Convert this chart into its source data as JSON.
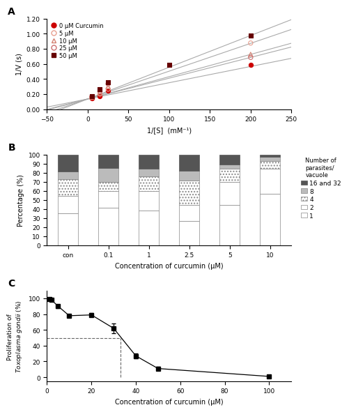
{
  "panel_A": {
    "xlabel": "1/[S]  (mM⁻¹)",
    "ylabel": "1/V (s)",
    "xlim": [
      -50,
      250
    ],
    "ylim": [
      0.0,
      1.2
    ],
    "yticks": [
      0.0,
      0.2,
      0.4,
      0.6,
      0.8,
      1.0,
      1.2
    ],
    "xticks": [
      -50,
      0,
      50,
      100,
      150,
      200,
      250
    ],
    "series": [
      {
        "label": "0 μM Curcumin",
        "color": "#cc0000",
        "marker": "o",
        "filled": true,
        "points": [
          [
            5,
            0.145
          ],
          [
            15,
            0.175
          ],
          [
            25,
            0.245
          ],
          [
            200,
            0.585
          ]
        ],
        "slope": 0.00215,
        "intercept": 0.135
      },
      {
        "label": "5 μM",
        "color": "#e8a090",
        "marker": "o",
        "filled": false,
        "points": [
          [
            5,
            0.155
          ],
          [
            15,
            0.2
          ],
          [
            25,
            0.265
          ],
          [
            200,
            0.875
          ]
        ],
        "slope": 0.00368,
        "intercept": 0.135
      },
      {
        "label": "10 μM",
        "color": "#d48070",
        "marker": "^",
        "filled": false,
        "points": [
          [
            5,
            0.16
          ],
          [
            15,
            0.215
          ],
          [
            25,
            0.3
          ],
          [
            200,
            0.725
          ]
        ],
        "slope": 0.00295,
        "intercept": 0.135
      },
      {
        "label": "25 μM",
        "color": "#cc7070",
        "marker": "o",
        "filled": false,
        "points": [
          [
            5,
            0.165
          ],
          [
            15,
            0.235
          ],
          [
            25,
            0.335
          ],
          [
            200,
            0.685
          ]
        ],
        "slope": 0.00275,
        "intercept": 0.135
      },
      {
        "label": "50 μM",
        "color": "#660000",
        "marker": "s",
        "filled": true,
        "points": [
          [
            5,
            0.175
          ],
          [
            15,
            0.265
          ],
          [
            25,
            0.355
          ],
          [
            100,
            0.585
          ],
          [
            200,
            0.975
          ]
        ],
        "slope": 0.0042,
        "intercept": 0.135
      }
    ]
  },
  "panel_B": {
    "categories": [
      "con",
      "0.1",
      "1",
      "2.5",
      "5",
      "10"
    ],
    "xlabel": "Concentration of curcumin (μM)",
    "ylabel": "Percentage (%)",
    "yticks": [
      0,
      10,
      20,
      30,
      40,
      50,
      60,
      70,
      80,
      90,
      100
    ],
    "legend_title": "Number of\nparasites/\nvacuole",
    "data": {
      "1": [
        35,
        41,
        38,
        27,
        44,
        57
      ],
      "2": [
        19,
        19,
        22,
        17,
        26,
        27
      ],
      "4": [
        19,
        10,
        16,
        27,
        14,
        9
      ],
      "8": [
        8,
        15,
        8,
        11,
        5,
        4
      ],
      "16and32": [
        19,
        15,
        16,
        18,
        11,
        3
      ]
    },
    "seg_colors": [
      "#ffffff",
      "#ffffff",
      "#ffffff",
      "#bbbbbb",
      "#555555"
    ],
    "seg_hatches": [
      "",
      "",
      "....",
      "",
      ""
    ],
    "seg_edge_colors": [
      "#888888",
      "#888888",
      "#888888",
      "#888888",
      "#555555"
    ],
    "seg_labels": [
      "1",
      "2",
      "4",
      "8",
      "16 and 32"
    ],
    "seg_keys": [
      "1",
      "2",
      "4",
      "8",
      "16and32"
    ]
  },
  "panel_C": {
    "xlabel": "Concentration of curcumin (μM)",
    "ylabel_normal": "Proliferation of ",
    "ylabel_italic": "Toxoplasma gondii",
    "ylabel_end": " (%)",
    "xlim": [
      0,
      110
    ],
    "ylim": [
      -5,
      110
    ],
    "yticks": [
      0,
      20,
      40,
      60,
      80,
      100
    ],
    "xticks": [
      0,
      20,
      40,
      60,
      80,
      100
    ],
    "points_x": [
      1,
      2,
      5,
      10,
      20,
      30,
      40,
      50,
      100
    ],
    "points_y": [
      99,
      98,
      90,
      78,
      79,
      62,
      27,
      11,
      1
    ],
    "errors": [
      1.5,
      1.5,
      2.0,
      2.0,
      2.0,
      6.0,
      3.0,
      2.0,
      1.0
    ],
    "ic50_x": 33,
    "ic50_y": 50
  }
}
